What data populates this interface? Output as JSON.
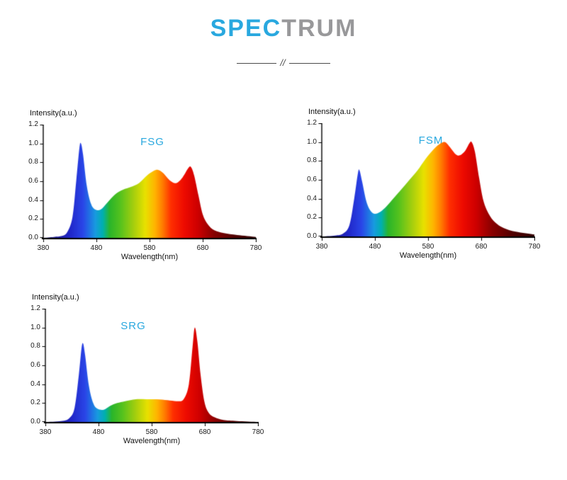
{
  "header": {
    "title_primary": "SPEC",
    "title_secondary": "TRUM",
    "divider_glyph": "//",
    "colors": {
      "primary_blue": "#29a8df",
      "secondary_gray": "#98989a"
    }
  },
  "axis": {
    "intensity_label": "Intensity(a.u.)",
    "wavelength_label": "Wavelength(nm)",
    "yticks": [
      "0.0",
      "0.2",
      "0.4",
      "0.6",
      "0.8",
      "1.0",
      "1.2"
    ],
    "xticks": [
      "380",
      "480",
      "580",
      "680",
      "780"
    ],
    "xlim": [
      380,
      780
    ],
    "ylim": [
      0,
      1.2
    ]
  },
  "spectrum_gradient": [
    {
      "nm": 380,
      "color": "#1b1464"
    },
    {
      "nm": 430,
      "color": "#2026c8"
    },
    {
      "nm": 455,
      "color": "#2a46e8"
    },
    {
      "nm": 478,
      "color": "#189ae0"
    },
    {
      "nm": 492,
      "color": "#00b0b0"
    },
    {
      "nm": 505,
      "color": "#2ab52a"
    },
    {
      "nm": 525,
      "color": "#55c21e"
    },
    {
      "nm": 550,
      "color": "#a5cf0e"
    },
    {
      "nm": 572,
      "color": "#e8e100"
    },
    {
      "nm": 590,
      "color": "#ffb400"
    },
    {
      "nm": 605,
      "color": "#ff7a00"
    },
    {
      "nm": 620,
      "color": "#ff3000"
    },
    {
      "nm": 645,
      "color": "#ee0b00"
    },
    {
      "nm": 670,
      "color": "#cf0000"
    },
    {
      "nm": 700,
      "color": "#8a0000"
    },
    {
      "nm": 740,
      "color": "#500000"
    },
    {
      "nm": 780,
      "color": "#320000"
    }
  ],
  "chart_data": [
    {
      "id": "fsg",
      "type": "area",
      "title": "FSG",
      "title_color": "#29a8df",
      "xlabel": "Wavelength(nm)",
      "ylabel": "Intensity(a.u.)",
      "xlim": [
        380,
        780
      ],
      "ylim": [
        0,
        1.2
      ],
      "points": [
        [
          380,
          0
        ],
        [
          400,
          0.01
        ],
        [
          415,
          0.02
        ],
        [
          425,
          0.06
        ],
        [
          435,
          0.22
        ],
        [
          442,
          0.6
        ],
        [
          448,
          0.95
        ],
        [
          451,
          1.0
        ],
        [
          455,
          0.88
        ],
        [
          462,
          0.55
        ],
        [
          470,
          0.36
        ],
        [
          478,
          0.3
        ],
        [
          488,
          0.3
        ],
        [
          500,
          0.37
        ],
        [
          515,
          0.46
        ],
        [
          530,
          0.51
        ],
        [
          545,
          0.54
        ],
        [
          560,
          0.58
        ],
        [
          575,
          0.66
        ],
        [
          588,
          0.71
        ],
        [
          596,
          0.72
        ],
        [
          605,
          0.69
        ],
        [
          618,
          0.61
        ],
        [
          630,
          0.58
        ],
        [
          642,
          0.64
        ],
        [
          653,
          0.74
        ],
        [
          658,
          0.75
        ],
        [
          664,
          0.66
        ],
        [
          672,
          0.45
        ],
        [
          680,
          0.25
        ],
        [
          690,
          0.14
        ],
        [
          702,
          0.08
        ],
        [
          720,
          0.05
        ],
        [
          745,
          0.03
        ],
        [
          780,
          0.01
        ]
      ]
    },
    {
      "id": "fsm",
      "type": "area",
      "title": "FSM",
      "title_color": "#29a8df",
      "xlabel": "Wavelength(nm)",
      "ylabel": "Intensity(a.u.)",
      "xlim": [
        380,
        780
      ],
      "ylim": [
        0,
        1.2
      ],
      "points": [
        [
          380,
          0
        ],
        [
          405,
          0.01
        ],
        [
          420,
          0.03
        ],
        [
          432,
          0.12
        ],
        [
          441,
          0.4
        ],
        [
          448,
          0.67
        ],
        [
          451,
          0.7
        ],
        [
          456,
          0.58
        ],
        [
          464,
          0.37
        ],
        [
          472,
          0.27
        ],
        [
          480,
          0.24
        ],
        [
          490,
          0.26
        ],
        [
          502,
          0.32
        ],
        [
          516,
          0.41
        ],
        [
          530,
          0.5
        ],
        [
          545,
          0.6
        ],
        [
          560,
          0.7
        ],
        [
          575,
          0.82
        ],
        [
          590,
          0.92
        ],
        [
          602,
          0.98
        ],
        [
          612,
          1.0
        ],
        [
          622,
          0.94
        ],
        [
          632,
          0.87
        ],
        [
          640,
          0.86
        ],
        [
          650,
          0.91
        ],
        [
          658,
          0.99
        ],
        [
          662,
          1.0
        ],
        [
          668,
          0.9
        ],
        [
          676,
          0.62
        ],
        [
          684,
          0.38
        ],
        [
          694,
          0.24
        ],
        [
          706,
          0.15
        ],
        [
          722,
          0.09
        ],
        [
          745,
          0.05
        ],
        [
          780,
          0.02
        ]
      ]
    },
    {
      "id": "srg",
      "type": "area",
      "title": "SRG",
      "title_color": "#29a8df",
      "xlabel": "Wavelength(nm)",
      "ylabel": "Intensity(a.u.)",
      "xlim": [
        380,
        780
      ],
      "ylim": [
        0,
        1.2
      ],
      "points": [
        [
          380,
          0
        ],
        [
          410,
          0.01
        ],
        [
          425,
          0.04
        ],
        [
          435,
          0.15
        ],
        [
          443,
          0.5
        ],
        [
          448,
          0.78
        ],
        [
          451,
          0.83
        ],
        [
          455,
          0.7
        ],
        [
          462,
          0.38
        ],
        [
          470,
          0.2
        ],
        [
          478,
          0.14
        ],
        [
          490,
          0.13
        ],
        [
          502,
          0.17
        ],
        [
          515,
          0.2
        ],
        [
          530,
          0.22
        ],
        [
          550,
          0.24
        ],
        [
          570,
          0.24
        ],
        [
          590,
          0.24
        ],
        [
          610,
          0.23
        ],
        [
          628,
          0.22
        ],
        [
          640,
          0.24
        ],
        [
          650,
          0.4
        ],
        [
          657,
          0.8
        ],
        [
          661,
          1.0
        ],
        [
          666,
          0.85
        ],
        [
          672,
          0.5
        ],
        [
          679,
          0.22
        ],
        [
          687,
          0.1
        ],
        [
          698,
          0.05
        ],
        [
          715,
          0.02
        ],
        [
          740,
          0.01
        ],
        [
          780,
          0.0
        ]
      ]
    }
  ]
}
